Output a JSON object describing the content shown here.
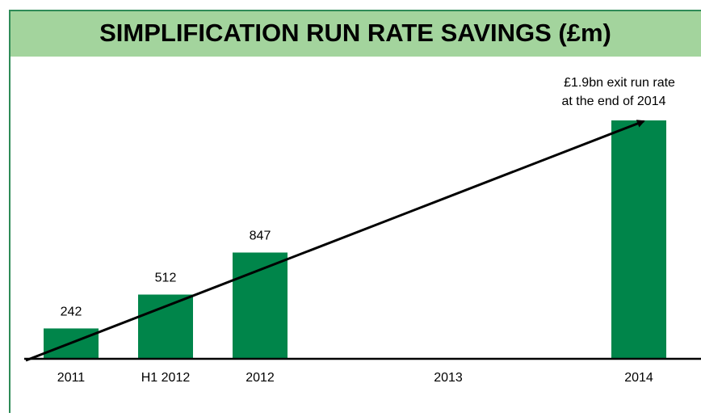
{
  "chart_data": {
    "type": "bar",
    "title": "SIMPLIFICATION RUN RATE SAVINGS (£m)",
    "categories": [
      "2011",
      "H1 2012",
      "2012",
      "2013",
      "2014"
    ],
    "values": [
      242,
      512,
      847,
      null,
      1900
    ],
    "value_labels": [
      "242",
      "512",
      "847",
      null,
      null
    ],
    "color": "#00854a",
    "annotation": [
      "£1.9bn exit run rate",
      "at the end of 2014"
    ]
  }
}
